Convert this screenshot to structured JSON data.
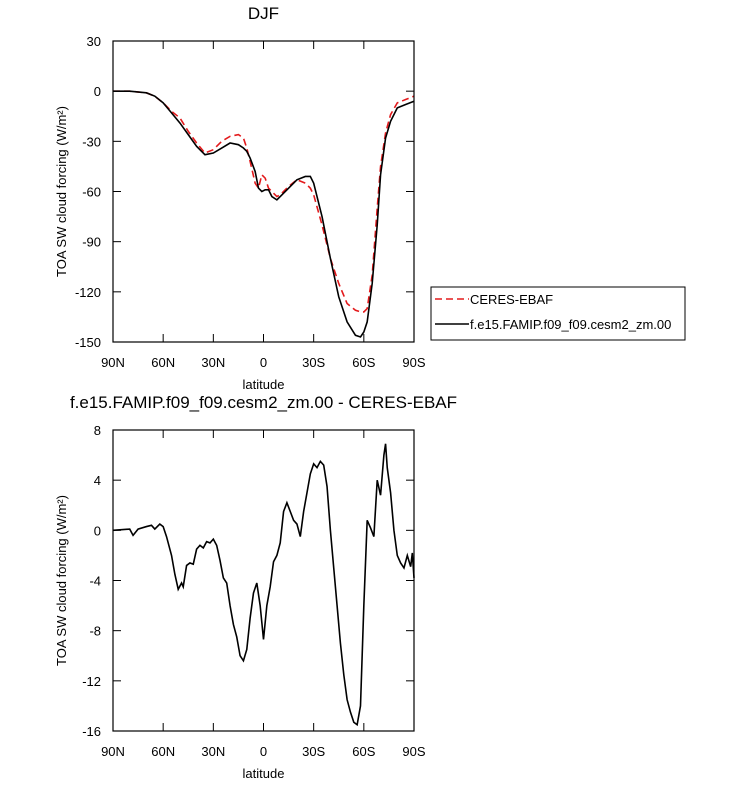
{
  "chart_data": [
    {
      "type": "line",
      "title": "DJF",
      "x_label": "latitude",
      "y_label": "TOA SW cloud forcing (W/m²)",
      "x": [
        90,
        80,
        70,
        65,
        60,
        55,
        50,
        45,
        40,
        35,
        30,
        25,
        20,
        15,
        12,
        10,
        8,
        5,
        3,
        1,
        -1,
        -3,
        -5,
        -8,
        -10,
        -15,
        -20,
        -25,
        -28,
        -30,
        -35,
        -40,
        -45,
        -50,
        -55,
        -58,
        -60,
        -62,
        -65,
        -68,
        -70,
        -73,
        -76,
        -80,
        -85,
        -90
      ],
      "series": [
        {
          "name": "CERES-EBAF",
          "color": "#e31a1c",
          "line_style": "dashed",
          "values": [
            0,
            0,
            -1,
            -3,
            -7,
            -12,
            -16,
            -24,
            -31,
            -37,
            -35,
            -30,
            -27,
            -26,
            -28,
            -34,
            -42,
            -55,
            -58,
            -50,
            -52,
            -58,
            -60,
            -63,
            -62,
            -57,
            -53,
            -55,
            -58,
            -62,
            -80,
            -100,
            -115,
            -127,
            -131,
            -132,
            -132,
            -130,
            -110,
            -70,
            -45,
            -25,
            -14,
            -7,
            -5,
            -3
          ]
        },
        {
          "name": "f.e15.FAMIP.f09_f09.cesm2_zm.00",
          "color": "#000000",
          "line_style": "solid",
          "values": [
            0,
            0,
            -1,
            -3,
            -7,
            -13,
            -19,
            -26,
            -33,
            -38,
            -37,
            -34,
            -31,
            -32,
            -34,
            -36,
            -40,
            -48,
            -58,
            -60,
            -59,
            -59,
            -63,
            -65,
            -63,
            -58,
            -53,
            -51,
            -51,
            -55,
            -75,
            -100,
            -123,
            -138,
            -146,
            -147,
            -144,
            -138,
            -115,
            -80,
            -50,
            -28,
            -18,
            -10,
            -8,
            -6
          ]
        }
      ],
      "xlim": [
        90,
        -90
      ],
      "xticks": [
        {
          "value": 90,
          "label": "90N"
        },
        {
          "value": 60,
          "label": "60N"
        },
        {
          "value": 30,
          "label": "30N"
        },
        0,
        {
          "value": -30,
          "label": "30S"
        },
        {
          "value": -60,
          "label": "60S"
        },
        {
          "value": -90,
          "label": "90S"
        }
      ],
      "ylim": [
        -150,
        30
      ],
      "yticks": [
        30,
        0,
        -30,
        -60,
        -90,
        -120,
        -150
      ],
      "legend": "right-outside"
    },
    {
      "type": "line",
      "title": "f.e15.FAMIP.f09_f09.cesm2_zm.00 - CERES-EBAF",
      "x_label": "latitude",
      "y_label": "TOA SW cloud forcing (W/m²)",
      "x": [
        90,
        80,
        78,
        75,
        70,
        67,
        65,
        62,
        60,
        58,
        55,
        53,
        51,
        49,
        48,
        46,
        44,
        42,
        40,
        38,
        36,
        34,
        32,
        30,
        28,
        26,
        24,
        22,
        20,
        18,
        16,
        14,
        12,
        10,
        8,
        6,
        4,
        2,
        0,
        -2,
        -4,
        -6,
        -8,
        -10,
        -12,
        -14,
        -16,
        -18,
        -20,
        -22,
        -24,
        -26,
        -28,
        -30,
        -32,
        -34,
        -36,
        -38,
        -40,
        -42,
        -44,
        -46,
        -48,
        -50,
        -52,
        -54,
        -56,
        -58,
        -60,
        -62,
        -64,
        -66,
        -68,
        -70,
        -72,
        -73,
        -74,
        -76,
        -78,
        -80,
        -82,
        -84,
        -86,
        -88,
        -89,
        -90
      ],
      "series": [
        {
          "color": "#000000",
          "line_style": "solid",
          "values": [
            0,
            0.1,
            -0.4,
            0.1,
            0.3,
            0.4,
            0.1,
            0.5,
            0.3,
            -0.5,
            -2,
            -3.5,
            -4.7,
            -4.2,
            -4.5,
            -2.8,
            -2.6,
            -2.7,
            -1.5,
            -1.2,
            -1.4,
            -0.9,
            -1.0,
            -0.7,
            -1.2,
            -2.4,
            -3.8,
            -4.2,
            -6,
            -7.5,
            -8.5,
            -10,
            -10.4,
            -9.5,
            -7,
            -5,
            -4.2,
            -6,
            -8.7,
            -6,
            -4.5,
            -2.5,
            -2.0,
            -1.0,
            1.5,
            2.2,
            1.5,
            0.8,
            0.5,
            -0.5,
            1.5,
            3.0,
            4.5,
            5.3,
            5.0,
            5.5,
            5.2,
            3.5,
            0,
            -3,
            -6,
            -9,
            -11.5,
            -13.5,
            -14.5,
            -15.3,
            -15.5,
            -14,
            -6,
            0.8,
            0.2,
            -0.5,
            4,
            2.8,
            6,
            6.9,
            5,
            3,
            0,
            -2,
            -2.6,
            -3,
            -2,
            -2.9,
            -1.8,
            -3.8
          ]
        }
      ],
      "xlim": [
        90,
        -90
      ],
      "xticks": [
        {
          "value": 90,
          "label": "90N"
        },
        {
          "value": 60,
          "label": "60N"
        },
        {
          "value": 30,
          "label": "30N"
        },
        0,
        {
          "value": -30,
          "label": "30S"
        },
        {
          "value": -60,
          "label": "60S"
        },
        {
          "value": -90,
          "label": "90S"
        }
      ],
      "ylim": [
        -16,
        8
      ],
      "yticks": [
        8,
        4,
        0,
        -4,
        -8,
        -12,
        -16
      ]
    }
  ]
}
